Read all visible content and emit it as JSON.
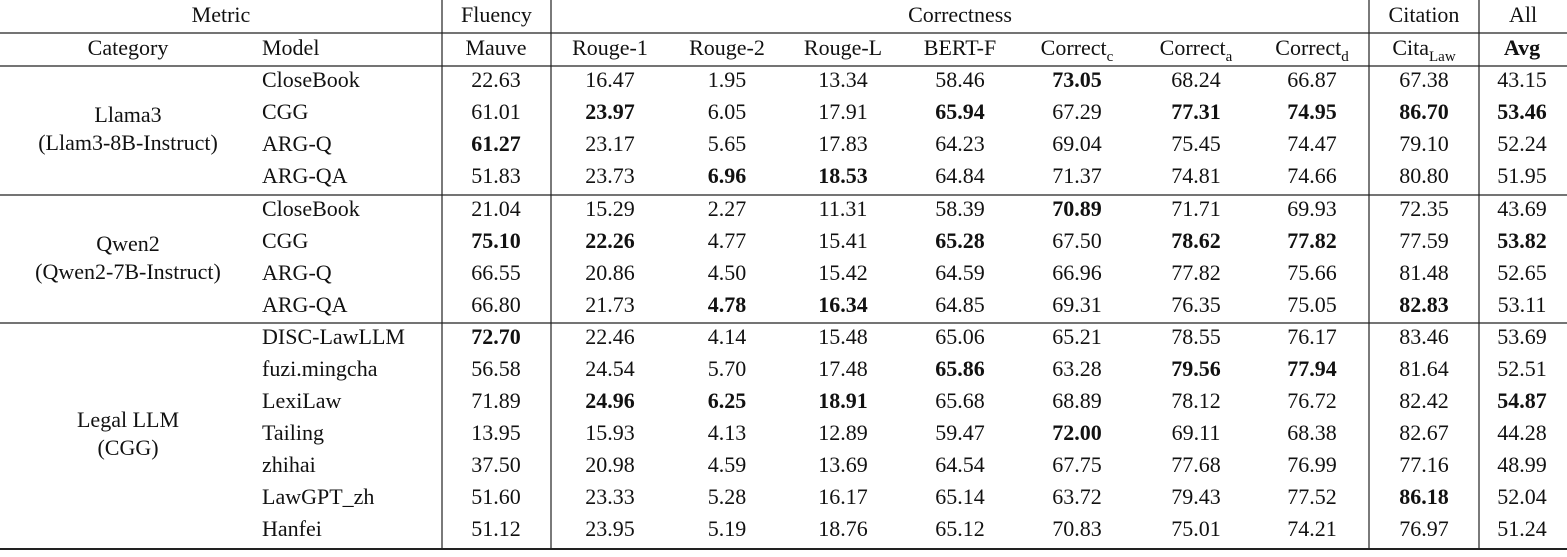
{
  "table": {
    "header_top": [
      {
        "text": "Metric",
        "span": 2
      },
      {
        "text": "Fluency",
        "span": 1
      },
      {
        "text": "Correctness",
        "span": 7
      },
      {
        "text": "Citation",
        "span": 1
      },
      {
        "text": "All",
        "span": 1
      }
    ],
    "header": [
      {
        "text": "Category"
      },
      {
        "text": "Model"
      },
      {
        "text": "Mauve"
      },
      {
        "text": "Rouge-1"
      },
      {
        "text": "Rouge-2"
      },
      {
        "text": "Rouge-L"
      },
      {
        "text": "BERT-F"
      },
      {
        "text": "Correct",
        "sub": "c"
      },
      {
        "text": "Correct",
        "sub": "a"
      },
      {
        "text": "Correct",
        "sub": "d"
      },
      {
        "text": "Cita",
        "sub": "Law"
      },
      {
        "text": "Avg",
        "bold": true
      }
    ],
    "groups": [
      {
        "category": [
          "Llama3",
          "(Llam3-8B-Instruct)"
        ],
        "rows": [
          {
            "model": "CloseBook",
            "values": [
              "22.63",
              "16.47",
              "1.95",
              "13.34",
              "58.46",
              "73.05",
              "68.24",
              "66.87",
              "67.38",
              "43.15"
            ],
            "bold": [
              5
            ]
          },
          {
            "model": "CGG",
            "values": [
              "61.01",
              "23.97",
              "6.05",
              "17.91",
              "65.94",
              "67.29",
              "77.31",
              "74.95",
              "86.70",
              "53.46"
            ],
            "bold": [
              1,
              4,
              6,
              7,
              8,
              9
            ]
          },
          {
            "model": "ARG-Q",
            "values": [
              "61.27",
              "23.17",
              "5.65",
              "17.83",
              "64.23",
              "69.04",
              "75.45",
              "74.47",
              "79.10",
              "52.24"
            ],
            "bold": [
              0
            ]
          },
          {
            "model": "ARG-QA",
            "values": [
              "51.83",
              "23.73",
              "6.96",
              "18.53",
              "64.84",
              "71.37",
              "74.81",
              "74.66",
              "80.80",
              "51.95"
            ],
            "bold": [
              2,
              3
            ]
          }
        ]
      },
      {
        "category": [
          "Qwen2",
          "(Qwen2-7B-Instruct)"
        ],
        "rows": [
          {
            "model": "CloseBook",
            "values": [
              "21.04",
              "15.29",
              "2.27",
              "11.31",
              "58.39",
              "70.89",
              "71.71",
              "69.93",
              "72.35",
              "43.69"
            ],
            "bold": [
              5
            ]
          },
          {
            "model": "CGG",
            "values": [
              "75.10",
              "22.26",
              "4.77",
              "15.41",
              "65.28",
              "67.50",
              "78.62",
              "77.82",
              "77.59",
              "53.82"
            ],
            "bold": [
              0,
              1,
              4,
              6,
              7,
              9
            ]
          },
          {
            "model": "ARG-Q",
            "values": [
              "66.55",
              "20.86",
              "4.50",
              "15.42",
              "64.59",
              "66.96",
              "77.82",
              "75.66",
              "81.48",
              "52.65"
            ],
            "bold": []
          },
          {
            "model": "ARG-QA",
            "values": [
              "66.80",
              "21.73",
              "4.78",
              "16.34",
              "64.85",
              "69.31",
              "76.35",
              "75.05",
              "82.83",
              "53.11"
            ],
            "bold": [
              2,
              3,
              8
            ]
          }
        ]
      },
      {
        "category": [
          "Legal LLM",
          "(CGG)"
        ],
        "rows": [
          {
            "model": "DISC-LawLLM",
            "values": [
              "72.70",
              "22.46",
              "4.14",
              "15.48",
              "65.06",
              "65.21",
              "78.55",
              "76.17",
              "83.46",
              "53.69"
            ],
            "bold": [
              0
            ]
          },
          {
            "model": "fuzi.mingcha",
            "values": [
              "56.58",
              "24.54",
              "5.70",
              "17.48",
              "65.86",
              "63.28",
              "79.56",
              "77.94",
              "81.64",
              "52.51"
            ],
            "bold": [
              4,
              6,
              7
            ]
          },
          {
            "model": "LexiLaw",
            "values": [
              "71.89",
              "24.96",
              "6.25",
              "18.91",
              "65.68",
              "68.89",
              "78.12",
              "76.72",
              "82.42",
              "54.87"
            ],
            "bold": [
              1,
              2,
              3,
              9
            ]
          },
          {
            "model": "Tailing",
            "values": [
              "13.95",
              "15.93",
              "4.13",
              "12.89",
              "59.47",
              "72.00",
              "69.11",
              "68.38",
              "82.67",
              "44.28"
            ],
            "bold": [
              5
            ]
          },
          {
            "model": "zhihai",
            "values": [
              "37.50",
              "20.98",
              "4.59",
              "13.69",
              "64.54",
              "67.75",
              "77.68",
              "76.99",
              "77.16",
              "48.99"
            ],
            "bold": []
          },
          {
            "model": "LawGPT_zh",
            "values": [
              "51.60",
              "23.33",
              "5.28",
              "16.17",
              "65.14",
              "63.72",
              "79.43",
              "77.52",
              "86.18",
              "52.04"
            ],
            "bold": [
              8
            ]
          },
          {
            "model": "Hanfei",
            "values": [
              "51.12",
              "23.95",
              "5.19",
              "18.76",
              "65.12",
              "70.83",
              "75.01",
              "74.21",
              "76.97",
              "51.24"
            ],
            "bold": []
          }
        ]
      }
    ]
  }
}
